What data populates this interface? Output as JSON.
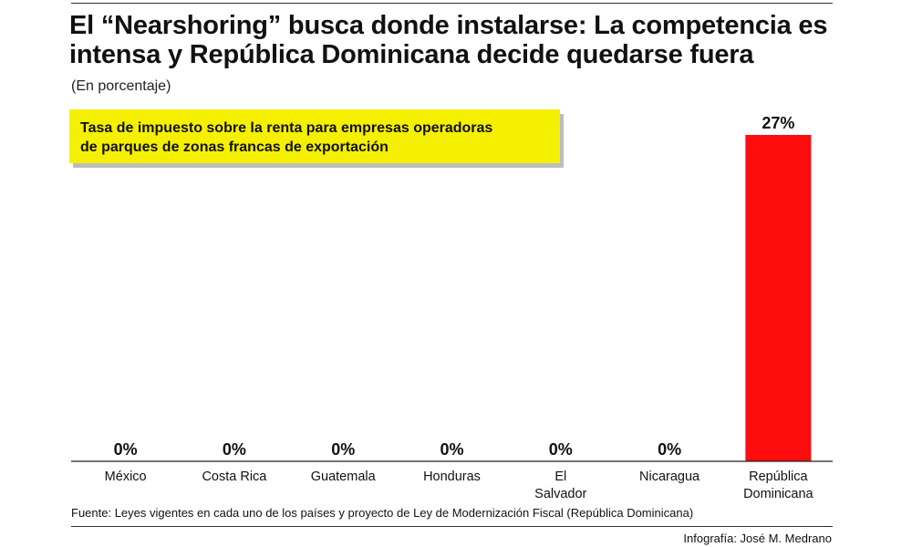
{
  "header": {
    "title": "El “Nearshoring” busca donde instalarse: La competencia es intensa y República Dominicana decide quedarse fuera",
    "subtitle": "(En porcentaje)"
  },
  "callout": {
    "text_line1": "Tasa de impuesto sobre la renta para empresas operadoras",
    "text_line2": "de parques de zonas francas de exportación",
    "color": "#f5f000"
  },
  "chart_data": {
    "type": "bar",
    "categories": [
      [
        "México"
      ],
      [
        "Costa Rica"
      ],
      [
        "Guatemala"
      ],
      [
        "Honduras"
      ],
      [
        "El",
        "Salvador"
      ],
      [
        "Nicaragua"
      ],
      [
        "República",
        "Dominicana"
      ]
    ],
    "values": [
      0,
      0,
      0,
      0,
      0,
      0,
      27
    ],
    "value_labels": [
      "0%",
      "0%",
      "0%",
      "0%",
      "0%",
      "0%",
      "27%"
    ],
    "ylim": [
      0,
      27
    ],
    "bar_color": "#fd0d0d",
    "grid": false,
    "legend": false
  },
  "footer": {
    "source": "Fuente: Leyes vigentes en cada uno de los países y proyecto de Ley de Modernización Fiscal (República Dominicana)",
    "credit": "Infografía: José M. Medrano"
  }
}
